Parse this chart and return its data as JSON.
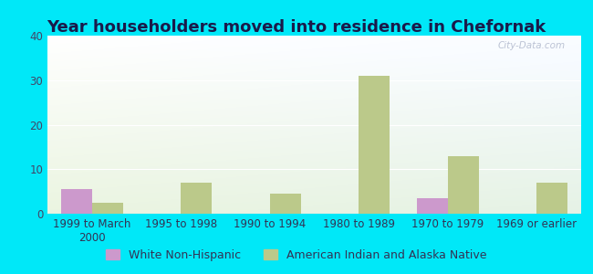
{
  "title": "Year householders moved into residence in Chefornak",
  "categories": [
    "1999 to March\n2000",
    "1995 to 1998",
    "1990 to 1994",
    "1980 to 1989",
    "1970 to 1979",
    "1969 or earlier"
  ],
  "white_values": [
    5.5,
    0,
    0,
    0,
    3.5,
    0
  ],
  "native_values": [
    2.5,
    7,
    4.5,
    31,
    13,
    7
  ],
  "white_color": "#cc99cc",
  "native_color": "#bbc98a",
  "background_outer": "#00e8f8",
  "ylim": [
    0,
    40
  ],
  "yticks": [
    0,
    10,
    20,
    30,
    40
  ],
  "bar_width": 0.35,
  "watermark": "City-Data.com",
  "legend_white": "White Non-Hispanic",
  "legend_native": "American Indian and Alaska Native",
  "title_fontsize": 13,
  "tick_fontsize": 8.5,
  "legend_fontsize": 9,
  "title_color": "#1a1a4a"
}
